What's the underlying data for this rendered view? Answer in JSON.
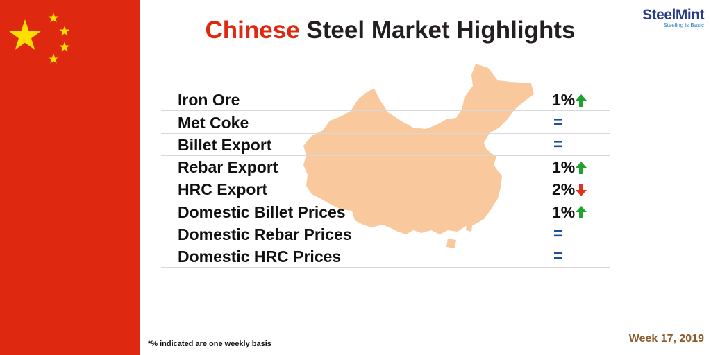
{
  "title": {
    "highlight": "Chinese",
    "rest": "Steel Market Highlights"
  },
  "logo": {
    "brand": "SteelMint",
    "tagline": "Steeling is Basic"
  },
  "colors": {
    "flag_red": "#de2910",
    "star_yellow": "#ffde00",
    "map_fill": "#f9c99d",
    "up": "#1fa32e",
    "down": "#e0301e",
    "equal": "#1f4e9c",
    "week": "#8a5a2b"
  },
  "rows": [
    {
      "label": "Iron Ore",
      "value": "1%",
      "trend": "up"
    },
    {
      "label": "Met Coke",
      "value": "=",
      "trend": "equal"
    },
    {
      "label": "Billet Export",
      "value": "=",
      "trend": "equal"
    },
    {
      "label": "Rebar Export",
      "value": "1%",
      "trend": "up"
    },
    {
      "label": "HRC Export",
      "value": "2%",
      "trend": "down"
    },
    {
      "label": "Domestic Billet Prices",
      "value": "1%",
      "trend": "up"
    },
    {
      "label": "Domestic Rebar Prices",
      "value": "=",
      "trend": "equal"
    },
    {
      "label": "Domestic HRC Prices",
      "value": "=",
      "trend": "equal"
    }
  ],
  "footnote": "*% indicated are one weekly basis",
  "week": "Week 17, 2019"
}
